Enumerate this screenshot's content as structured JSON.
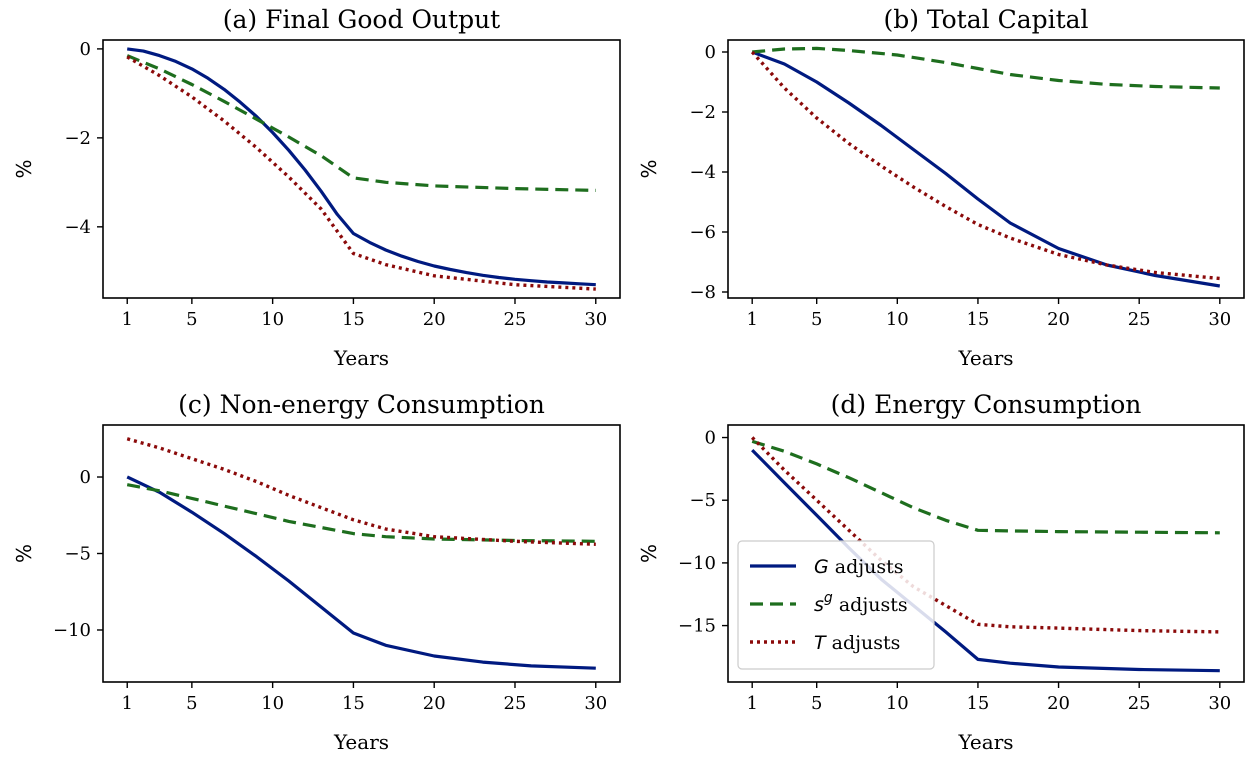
{
  "colors": {
    "G": "#001a80",
    "sg": "#1e6e1e",
    "T": "#8b0a0a"
  },
  "chart_data": [
    {
      "type": "line",
      "title": "(a) Final Good Output",
      "xlabel": "Years",
      "ylabel": "%",
      "xlim": [
        -0.5,
        31.5
      ],
      "ylim": [
        -5.6,
        0.2
      ],
      "xticks": [
        1,
        5,
        10,
        15,
        20,
        25,
        30
      ],
      "yticks": [
        0,
        -2,
        -4
      ],
      "ytick_labels": [
        "0",
        "−2",
        "−4"
      ],
      "series": [
        {
          "key": "G",
          "x": [
            1,
            2,
            3,
            4,
            5,
            6,
            7,
            8,
            9,
            10,
            11,
            12,
            13,
            14,
            15,
            16,
            17,
            18,
            19,
            20,
            21,
            22,
            23,
            24,
            25,
            26,
            27,
            28,
            29,
            30
          ],
          "values": [
            0,
            -0.05,
            -0.15,
            -0.28,
            -0.45,
            -0.66,
            -0.91,
            -1.2,
            -1.52,
            -1.88,
            -2.28,
            -2.72,
            -3.2,
            -3.72,
            -4.15,
            -4.35,
            -4.52,
            -4.66,
            -4.78,
            -4.88,
            -4.96,
            -5.03,
            -5.09,
            -5.14,
            -5.18,
            -5.21,
            -5.24,
            -5.26,
            -5.28,
            -5.3
          ]
        },
        {
          "key": "sg",
          "x": [
            1,
            3,
            5,
            7,
            9,
            11,
            13,
            15,
            17,
            20,
            25,
            30
          ],
          "values": [
            -0.15,
            -0.45,
            -0.8,
            -1.18,
            -1.58,
            -1.98,
            -2.4,
            -2.9,
            -3.0,
            -3.08,
            -3.14,
            -3.18
          ]
        },
        {
          "key": "T",
          "x": [
            1,
            3,
            5,
            7,
            9,
            11,
            13,
            15,
            17,
            20,
            25,
            30
          ],
          "values": [
            -0.18,
            -0.6,
            -1.08,
            -1.62,
            -2.22,
            -2.88,
            -3.6,
            -4.6,
            -4.85,
            -5.1,
            -5.3,
            -5.4
          ]
        }
      ]
    },
    {
      "type": "line",
      "title": "(b) Total Capital",
      "xlabel": "Years",
      "ylabel": "%",
      "xlim": [
        -0.5,
        31.5
      ],
      "ylim": [
        -8.2,
        0.4
      ],
      "xticks": [
        1,
        5,
        10,
        15,
        20,
        25,
        30
      ],
      "yticks": [
        0,
        -2,
        -4,
        -6,
        -8
      ],
      "ytick_labels": [
        "0",
        "−2",
        "−4",
        "−6",
        "−8"
      ],
      "series": [
        {
          "key": "G",
          "x": [
            1,
            3,
            5,
            7,
            9,
            11,
            13,
            15,
            17,
            20,
            23,
            26,
            30
          ],
          "values": [
            0,
            -0.4,
            -1.0,
            -1.7,
            -2.45,
            -3.25,
            -4.05,
            -4.9,
            -5.7,
            -6.55,
            -7.1,
            -7.45,
            -7.8
          ]
        },
        {
          "key": "sg",
          "x": [
            1,
            3,
            5,
            7,
            10,
            13,
            15,
            17,
            20,
            23,
            26,
            30
          ],
          "values": [
            0,
            0.1,
            0.12,
            0.05,
            -0.1,
            -0.35,
            -0.55,
            -0.75,
            -0.95,
            -1.08,
            -1.15,
            -1.2
          ]
        },
        {
          "key": "T",
          "x": [
            1,
            3,
            5,
            7,
            9,
            11,
            13,
            15,
            17,
            20,
            23,
            26,
            30
          ],
          "values": [
            0,
            -1.2,
            -2.2,
            -3.05,
            -3.8,
            -4.5,
            -5.15,
            -5.75,
            -6.2,
            -6.75,
            -7.1,
            -7.35,
            -7.55
          ]
        }
      ]
    },
    {
      "type": "line",
      "title": "(c) Non-energy Consumption",
      "xlabel": "Years",
      "ylabel": "%",
      "xlim": [
        -0.5,
        31.5
      ],
      "ylim": [
        -13.4,
        3.4
      ],
      "xticks": [
        1,
        5,
        10,
        15,
        20,
        25,
        30
      ],
      "yticks": [
        0,
        -5,
        -10
      ],
      "ytick_labels": [
        "0",
        "−5",
        "−10"
      ],
      "series": [
        {
          "key": "G",
          "x": [
            1,
            3,
            5,
            7,
            9,
            11,
            13,
            15,
            17,
            20,
            23,
            26,
            30
          ],
          "values": [
            0,
            -1.0,
            -2.3,
            -3.7,
            -5.2,
            -6.8,
            -8.5,
            -10.2,
            -11.0,
            -11.7,
            -12.1,
            -12.35,
            -12.5
          ]
        },
        {
          "key": "sg",
          "x": [
            1,
            3,
            5,
            7,
            9,
            11,
            13,
            15,
            17,
            20,
            25,
            30
          ],
          "values": [
            -0.5,
            -0.9,
            -1.4,
            -1.9,
            -2.4,
            -2.9,
            -3.3,
            -3.7,
            -3.9,
            -4.05,
            -4.15,
            -4.2
          ]
        },
        {
          "key": "T",
          "x": [
            1,
            3,
            5,
            7,
            9,
            11,
            13,
            15,
            17,
            20,
            25,
            30
          ],
          "values": [
            2.5,
            1.9,
            1.2,
            0.5,
            -0.3,
            -1.2,
            -2.0,
            -2.8,
            -3.4,
            -3.9,
            -4.2,
            -4.4
          ]
        }
      ]
    },
    {
      "type": "line",
      "title": "(d) Energy Consumption",
      "xlabel": "Years",
      "ylabel": "%",
      "xlim": [
        -0.5,
        31.5
      ],
      "ylim": [
        -19.5,
        1.0
      ],
      "xticks": [
        1,
        5,
        10,
        15,
        20,
        25,
        30
      ],
      "yticks": [
        0,
        -5,
        -10,
        -15
      ],
      "ytick_labels": [
        "0",
        "−5",
        "−10",
        "−15"
      ],
      "series": [
        {
          "key": "G",
          "x": [
            1,
            3,
            5,
            7,
            9,
            11,
            13,
            15,
            17,
            20,
            25,
            30
          ],
          "values": [
            -1.0,
            -3.6,
            -6.2,
            -8.8,
            -11.3,
            -13.4,
            -15.5,
            -17.7,
            -18.0,
            -18.3,
            -18.5,
            -18.6
          ]
        },
        {
          "key": "sg",
          "x": [
            1,
            3,
            5,
            7,
            9,
            11,
            13,
            15,
            17,
            20,
            25,
            30
          ],
          "values": [
            -0.3,
            -1.1,
            -2.1,
            -3.2,
            -4.4,
            -5.6,
            -6.6,
            -7.4,
            -7.45,
            -7.5,
            -7.55,
            -7.6
          ]
        },
        {
          "key": "T",
          "x": [
            1,
            3,
            5,
            7,
            9,
            11,
            13,
            15,
            17,
            20,
            25,
            30
          ],
          "values": [
            0,
            -2.6,
            -5.0,
            -7.4,
            -9.8,
            -11.9,
            -13.4,
            -14.9,
            -15.1,
            -15.2,
            -15.4,
            -15.5
          ]
        }
      ]
    }
  ],
  "legend": {
    "entries": [
      {
        "key": "G",
        "symbol": "G",
        "sup": "",
        "text": "adjusts"
      },
      {
        "key": "sg",
        "symbol": "s",
        "sup": "g",
        "text": "adjusts"
      },
      {
        "key": "T",
        "symbol": "T",
        "sup": "",
        "text": "adjusts"
      }
    ]
  }
}
